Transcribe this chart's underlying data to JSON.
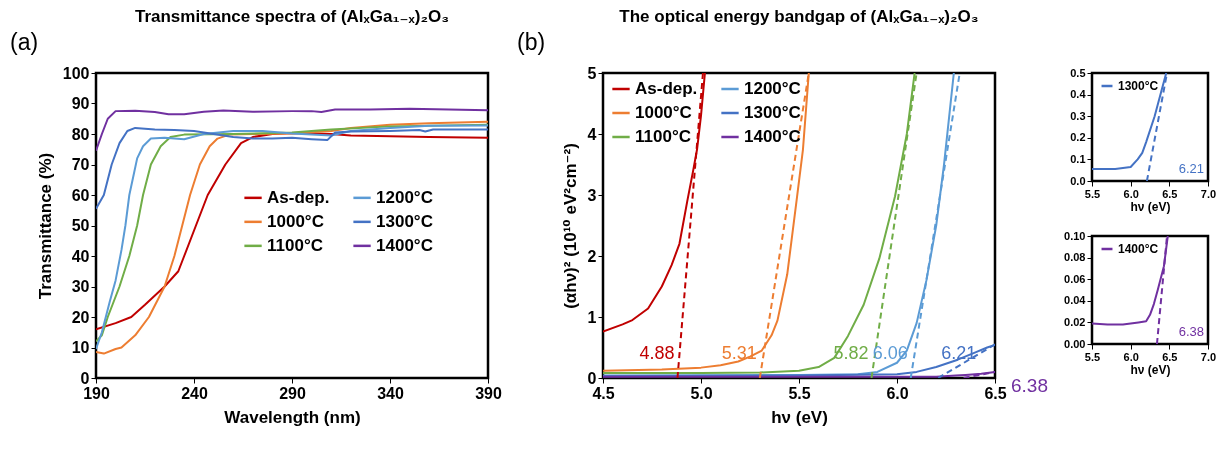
{
  "chart_data": [
    {
      "type": "line",
      "title": "Transmittance spectra of (AlₓGa₁₋ₓ)₂O₃",
      "xlabel": "Wavelength (nm)",
      "ylabel": "Transmittance (%)",
      "xlim": [
        190,
        390
      ],
      "xticks": [
        190,
        240,
        290,
        340,
        390
      ],
      "ylim": [
        0,
        100
      ],
      "yticks": [
        0,
        10,
        20,
        30,
        40,
        50,
        60,
        70,
        80,
        90,
        100
      ],
      "legend": "right",
      "annotations": [
        "(a)"
      ],
      "series": [
        {
          "name": "As-dep.",
          "color": "#c00000",
          "x": [
            190,
            200,
            208,
            215,
            225,
            232,
            235,
            241,
            247,
            256,
            264,
            270,
            280,
            290,
            310,
            320,
            340,
            360,
            390
          ],
          "values": [
            16,
            18,
            20,
            24,
            30,
            35,
            40,
            50,
            60,
            70,
            77,
            79,
            80,
            80.3,
            80,
            79.5,
            79.3,
            79,
            78.8
          ]
        },
        {
          "name": "1000°C",
          "color": "#ed7d31",
          "x": [
            190,
            194,
            200,
            203,
            210,
            217,
            225,
            230,
            234,
            238,
            243,
            248,
            252,
            258,
            270,
            290,
            310,
            320,
            340,
            360,
            390
          ],
          "values": [
            8.5,
            8,
            9.5,
            10,
            14,
            20,
            30,
            40,
            50,
            60,
            70,
            76,
            78.5,
            79.8,
            80,
            80.2,
            81,
            82,
            83,
            83.5,
            84
          ]
        },
        {
          "name": "1100°C",
          "color": "#70ad47",
          "x": [
            190,
            193,
            196,
            199,
            202,
            207,
            211,
            214,
            218,
            223,
            228,
            235,
            260,
            290,
            310,
            340,
            390
          ],
          "values": [
            12,
            14,
            20,
            25,
            30,
            40,
            50,
            60,
            70,
            76,
            79,
            79.8,
            80,
            80.5,
            81.5,
            82.5,
            83
          ]
        },
        {
          "name": "1200°C",
          "color": "#5b9bd5",
          "x": [
            190,
            193,
            197,
            200,
            203,
            205,
            207,
            209,
            211,
            214,
            218,
            225,
            235,
            245,
            260,
            275,
            290,
            310,
            320,
            340,
            360,
            390
          ],
          "values": [
            9.5,
            15,
            25,
            32,
            42,
            50,
            60,
            66,
            72,
            76,
            78.5,
            78.8,
            78.3,
            80,
            81,
            81,
            80.2,
            79.5,
            81,
            82,
            82.7,
            82.8
          ]
        },
        {
          "name": "1300°C",
          "color": "#4472c4",
          "x": [
            190,
            194,
            198,
            202,
            206,
            210,
            220,
            230,
            240,
            250,
            260,
            270,
            280,
            290,
            300,
            308,
            312,
            320,
            340,
            355,
            358,
            362,
            390
          ],
          "values": [
            55.5,
            60,
            70,
            77,
            81,
            82,
            81.5,
            81.3,
            81,
            80,
            79,
            78.5,
            78.5,
            78.8,
            78.3,
            78,
            80.5,
            80.8,
            81,
            81.3,
            80.8,
            81.5,
            81.5
          ]
        },
        {
          "name": "1400°C",
          "color": "#7030a0",
          "x": [
            190,
            193,
            196,
            200,
            210,
            220,
            227,
            235,
            245,
            255,
            270,
            290,
            300,
            305,
            312,
            330,
            350,
            370,
            390
          ],
          "values": [
            74.5,
            80,
            85,
            87.5,
            87.6,
            87.2,
            86.5,
            86.5,
            87.3,
            87.7,
            87.3,
            87.5,
            87.5,
            87.2,
            88,
            88,
            88.3,
            88,
            87.8
          ]
        }
      ]
    },
    {
      "type": "line",
      "title": "The optical energy bandgap of (AlₓGa₁₋ₓ)₂O₃",
      "xlabel": "hν (eV)",
      "ylabel": "(αhν)² (10¹⁰ eV²cm⁻²)",
      "xlim": [
        4.5,
        6.5
      ],
      "xticks": [
        4.5,
        {
          "value": 5,
          "label": "5.0"
        },
        5.5,
        {
          "value": 6,
          "label": "6.0"
        },
        6.5
      ],
      "ylim": [
        0,
        5
      ],
      "yticks": [
        0,
        1,
        2,
        3,
        4,
        5
      ],
      "legend": "top left",
      "annotations": [
        {
          "text": "4.88",
          "x": 4.88,
          "y": 0
        },
        {
          "text": "5.31",
          "x": 5.3,
          "y": 0
        },
        {
          "text": "5.82",
          "x": 5.87,
          "y": 0
        },
        {
          "text": "6.06",
          "x": 6.07,
          "y": 0
        },
        {
          "text": "6.21",
          "x": 6.21,
          "y": 0
        },
        "(b)",
        "6.38"
      ],
      "series": [
        {
          "name": "As-dep.",
          "color": "#c00000",
          "x": [
            4.5,
            4.6,
            4.65,
            4.73,
            4.8,
            4.85,
            4.89,
            4.93,
            4.96,
            4.98,
            5.0,
            5.02
          ],
          "values": [
            0.76,
            0.88,
            0.95,
            1.14,
            1.5,
            1.85,
            2.2,
            2.9,
            3.4,
            3.75,
            4.3,
            5.0
          ]
        },
        {
          "name": "1000°C",
          "color": "#ed7d31",
          "x": [
            4.5,
            4.8,
            5.0,
            5.1,
            5.19,
            5.25,
            5.31,
            5.36,
            5.39,
            5.44,
            5.49,
            5.52,
            5.55
          ],
          "values": [
            0.12,
            0.14,
            0.17,
            0.21,
            0.27,
            0.35,
            0.45,
            0.7,
            0.94,
            1.7,
            2.97,
            3.74,
            5.0
          ]
        },
        {
          "name": "1100°C",
          "color": "#70ad47",
          "x": [
            4.5,
            5.0,
            5.3,
            5.5,
            5.6,
            5.68,
            5.75,
            5.83,
            5.91,
            5.99,
            6.05,
            6.09
          ],
          "values": [
            0.08,
            0.08,
            0.09,
            0.12,
            0.18,
            0.33,
            0.69,
            1.2,
            1.96,
            2.98,
            4.0,
            5.0
          ]
        },
        {
          "name": "1200°C",
          "color": "#5b9bd5",
          "x": [
            4.5,
            5.5,
            5.8,
            5.9,
            6.0,
            6.05,
            6.1,
            6.15,
            6.2,
            6.24,
            6.29
          ],
          "values": [
            0.04,
            0.05,
            0.06,
            0.1,
            0.25,
            0.45,
            0.9,
            1.6,
            2.5,
            3.5,
            5.0
          ]
        },
        {
          "name": "1300°C",
          "color": "#4472c4",
          "x": [
            4.5,
            5.5,
            6.0,
            6.1,
            6.2,
            6.31,
            6.4,
            6.46,
            6.5
          ],
          "values": [
            0.03,
            0.04,
            0.06,
            0.1,
            0.18,
            0.3,
            0.42,
            0.5,
            0.54
          ]
        },
        {
          "name": "1400°C",
          "color": "#7030a0",
          "x": [
            4.5,
            5.5,
            6.2,
            6.3,
            6.35,
            6.43,
            6.5
          ],
          "values": [
            0.02,
            0.02,
            0.02,
            0.04,
            0.05,
            0.07,
            0.1
          ]
        },
        {
          "color": "#c00000",
          "line_style": "dashed",
          "x": [
            4.88,
            5.01
          ],
          "values": [
            0,
            5
          ]
        },
        {
          "color": "#ed7d31",
          "line_style": "dashed",
          "x": [
            5.3,
            5.55
          ],
          "values": [
            0,
            5
          ]
        },
        {
          "color": "#70ad47",
          "line_style": "dashed",
          "x": [
            5.87,
            6.1
          ],
          "values": [
            0,
            5
          ]
        },
        {
          "color": "#5b9bd5",
          "line_style": "dashed",
          "x": [
            6.07,
            6.32
          ],
          "values": [
            0,
            5
          ]
        },
        {
          "color": "#4472c4",
          "line_style": "dashed",
          "x": [
            6.21,
            6.5
          ],
          "values": [
            0,
            0.55
          ]
        },
        {
          "color": "#7030a0",
          "line_style": "dashed",
          "x": [
            6.34,
            6.5
          ],
          "values": [
            0,
            0.1
          ]
        }
      ]
    },
    {
      "type": "line",
      "xlabel": "hν (eV)",
      "xlim": [
        5.5,
        7
      ],
      "xticks": [
        5.5,
        {
          "value": 6,
          "label": "6.0"
        },
        6.5,
        {
          "value": 7,
          "label": "7.0"
        }
      ],
      "ylim": [
        0,
        0.5
      ],
      "yticks": [
        {
          "value": 0,
          "label": "0.0"
        },
        0.1,
        0.2,
        0.3,
        0.4,
        0.5
      ],
      "legend": "top left",
      "annotations": [
        "6.21"
      ],
      "series": [
        {
          "name": "1300°C",
          "color": "#4472c4",
          "x": [
            5.5,
            5.8,
            6.0,
            6.09,
            6.15,
            6.2,
            6.31,
            6.4,
            6.46
          ],
          "values": [
            0.055,
            0.056,
            0.065,
            0.1,
            0.13,
            0.18,
            0.3,
            0.42,
            0.5
          ]
        },
        {
          "color": "#4472c4",
          "line_style": "dashed",
          "x": [
            6.21,
            6.47
          ],
          "values": [
            0,
            0.5
          ]
        }
      ]
    },
    {
      "type": "line",
      "xlabel": "hν (eV)",
      "xlim": [
        5.5,
        7
      ],
      "xticks": [
        5.5,
        {
          "value": 6,
          "label": "6.0"
        },
        6.5,
        {
          "value": 7,
          "label": "7.0"
        }
      ],
      "ylim": [
        0,
        0.1
      ],
      "yticks": [
        {
          "value": 0,
          "label": "0.00"
        },
        {
          "value": 0.02,
          "label": "0.02"
        },
        {
          "value": 0.04,
          "label": "0.04"
        },
        {
          "value": 0.06,
          "label": "0.06"
        },
        {
          "value": 0.08,
          "label": "0.08"
        },
        {
          "value": 0.1,
          "label": "0.10"
        }
      ],
      "legend": "top left",
      "annotations": [
        "6.38"
      ],
      "series": [
        {
          "name": "1400°C",
          "color": "#7030a0",
          "x": [
            5.5,
            5.7,
            5.9,
            6.1,
            6.2,
            6.25,
            6.3,
            6.35,
            6.43,
            6.48
          ],
          "values": [
            0.019,
            0.018,
            0.018,
            0.02,
            0.021,
            0.027,
            0.037,
            0.05,
            0.072,
            0.1
          ]
        },
        {
          "color": "#7030a0",
          "line_style": "dashed",
          "x": [
            6.34,
            6.47
          ],
          "values": [
            0,
            0.1
          ]
        }
      ]
    }
  ]
}
